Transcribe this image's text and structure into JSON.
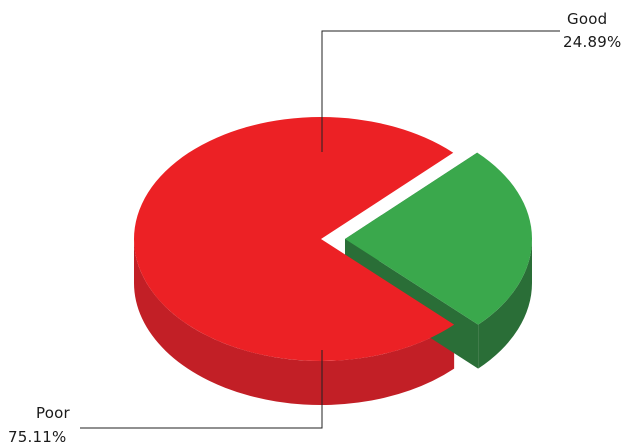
{
  "chart_data": {
    "type": "pie",
    "style": "3d-exploded",
    "title": "",
    "slices": [
      {
        "label": "Good",
        "value": 24.89,
        "value_label": "24.89%",
        "color": "#3aa84c",
        "side_color": "#2a6e37"
      },
      {
        "label": "Poor",
        "value": 75.11,
        "value_label": "75.11%",
        "color": "#ec2125",
        "side_color": "#c21f26"
      }
    ]
  }
}
